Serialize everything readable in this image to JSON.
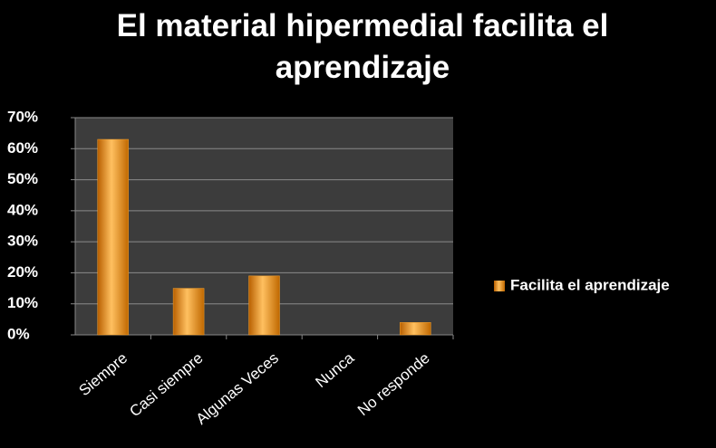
{
  "chart_data": {
    "type": "bar",
    "title": "El material hipermedial facilita el aprendizaje",
    "categories": [
      "Siempre",
      "Casi siempre",
      "Algunas Veces",
      "Nunca",
      "No responde"
    ],
    "series": [
      {
        "name": "Facilita el aprendizaje",
        "color": "#f0a030",
        "values": [
          63,
          15,
          19,
          0,
          4
        ]
      }
    ],
    "ylim": [
      0,
      70
    ],
    "yticks": [
      {
        "value": 0,
        "label": "0%"
      },
      {
        "value": 10,
        "label": "10%"
      },
      {
        "value": 20,
        "label": "20%"
      },
      {
        "value": 30,
        "label": "30%"
      },
      {
        "value": 40,
        "label": "40%"
      },
      {
        "value": 50,
        "label": "50%"
      },
      {
        "value": 60,
        "label": "60%"
      },
      {
        "value": 70,
        "label": "70%"
      }
    ],
    "grid": true,
    "legend": "right"
  }
}
